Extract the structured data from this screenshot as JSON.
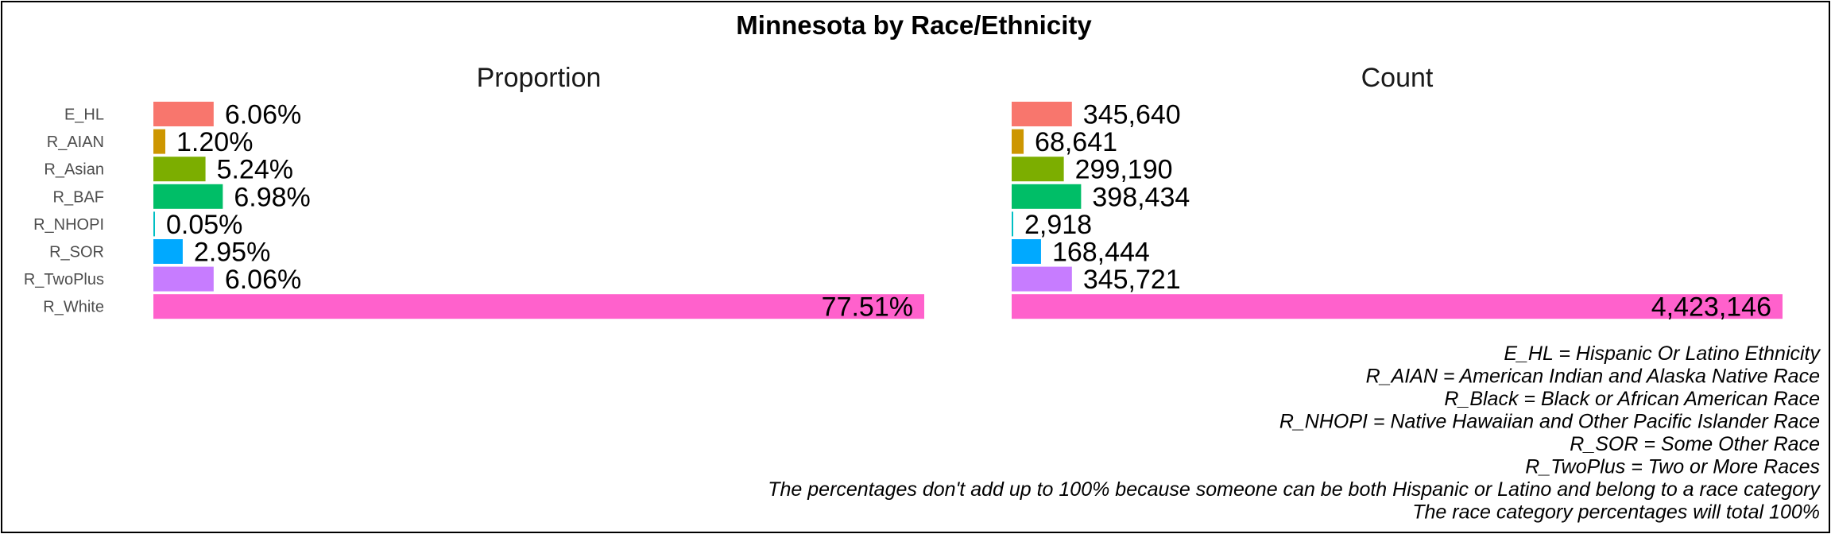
{
  "chart_data": {
    "title": "Minnesota by Race/Ethnicity",
    "categories": [
      "E_HL",
      "R_AIAN",
      "R_Asian",
      "R_BAF",
      "R_NHOPI",
      "R_SOR",
      "R_TwoPlus",
      "R_White"
    ],
    "colors": [
      "#F8766D",
      "#CD9600",
      "#7CAE00",
      "#00BE67",
      "#00BFC4",
      "#00A9FF",
      "#C77CFF",
      "#FF61CC"
    ],
    "panels": [
      {
        "title": "Proportion",
        "type": "bar",
        "orientation": "horizontal",
        "values": [
          6.06,
          1.2,
          5.24,
          6.98,
          0.05,
          2.95,
          6.06,
          77.51
        ],
        "labels": [
          "6.06%",
          "1.20%",
          "5.24%",
          "6.98%",
          "0.05%",
          "2.95%",
          "6.06%",
          "77.51%"
        ],
        "xlim": [
          0,
          77.51
        ]
      },
      {
        "title": "Count",
        "type": "bar",
        "orientation": "horizontal",
        "values": [
          345640,
          68641,
          299190,
          398434,
          2918,
          168444,
          345721,
          4423146
        ],
        "labels": [
          "345,640",
          "68,641",
          "299,190",
          "398,434",
          "2,918",
          "168,444",
          "345,721",
          "4,423,146"
        ],
        "xlim": [
          0,
          4423146
        ]
      }
    ],
    "grid": false,
    "legend": "none"
  },
  "notes": [
    "E_HL = Hispanic Or Latino Ethnicity",
    "R_AIAN = American Indian and Alaska Native Race",
    "R_Black = Black or African American Race",
    "R_NHOPI = Native Hawaiian and Other Pacific Islander Race",
    "R_SOR = Some Other Race",
    "R_TwoPlus = Two or More Races",
    "The percentages don't add up to 100% because someone can be both Hispanic or Latino and belong to a race category",
    "The race category percentages will total 100%"
  ]
}
